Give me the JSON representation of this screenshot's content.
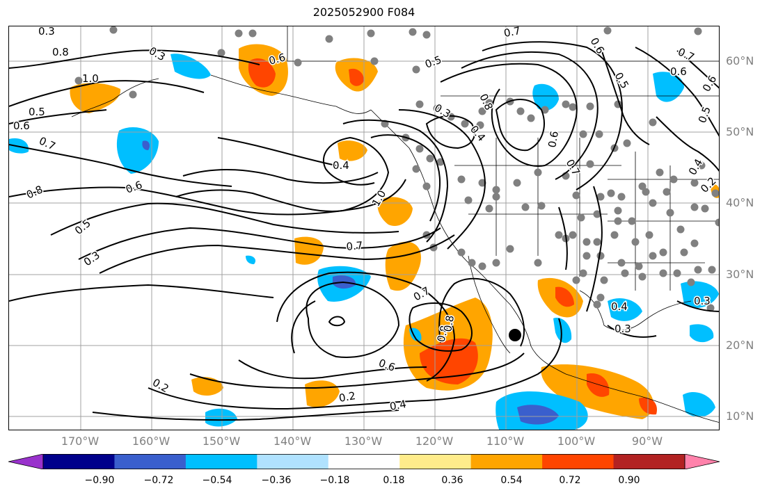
{
  "title": "2025052900 F084",
  "lat_labels": [
    "60°N",
    "50°N",
    "40°N",
    "30°N",
    "20°N",
    "10°N"
  ],
  "lon_labels": [
    "170°W",
    "160°W",
    "150°W",
    "140°W",
    "130°W",
    "120°W",
    "110°W",
    "100°W",
    "90°W"
  ],
  "colorbar": {
    "colors": [
      "#9932cc",
      "#00008b",
      "#3a5fcd",
      "#00bfff",
      "#b0e2ff",
      "#ffffff",
      "#ffec8b",
      "#ffa500",
      "#ff4500",
      "#b22222",
      "#ff82ab"
    ],
    "ticks": [
      "−0.90",
      "−0.72",
      "−0.54",
      "−0.36",
      "−0.18",
      "0.18",
      "0.36",
      "0.54",
      "0.72",
      "0.90"
    ]
  },
  "contour_labels": [
    "0.3",
    "0.8",
    "1.0",
    "0.5",
    "0.6",
    "0.7",
    "0.8",
    "0.5",
    "0.3",
    "0.6",
    "0.3",
    "0.6",
    "0.4",
    "0.7",
    "0.2",
    "0.4",
    "0.6",
    "0.7",
    "0.8",
    "0.7",
    "0.6",
    "0.8",
    "0.3",
    "0.4",
    "0.5",
    "0.5",
    "0.7",
    "1.0",
    "0.6",
    "0.4",
    "0.2",
    "0.3",
    "0.8",
    "0.6",
    "0.7",
    "0.6",
    "0.5",
    "0.4",
    "0.3",
    "0.2"
  ]
}
